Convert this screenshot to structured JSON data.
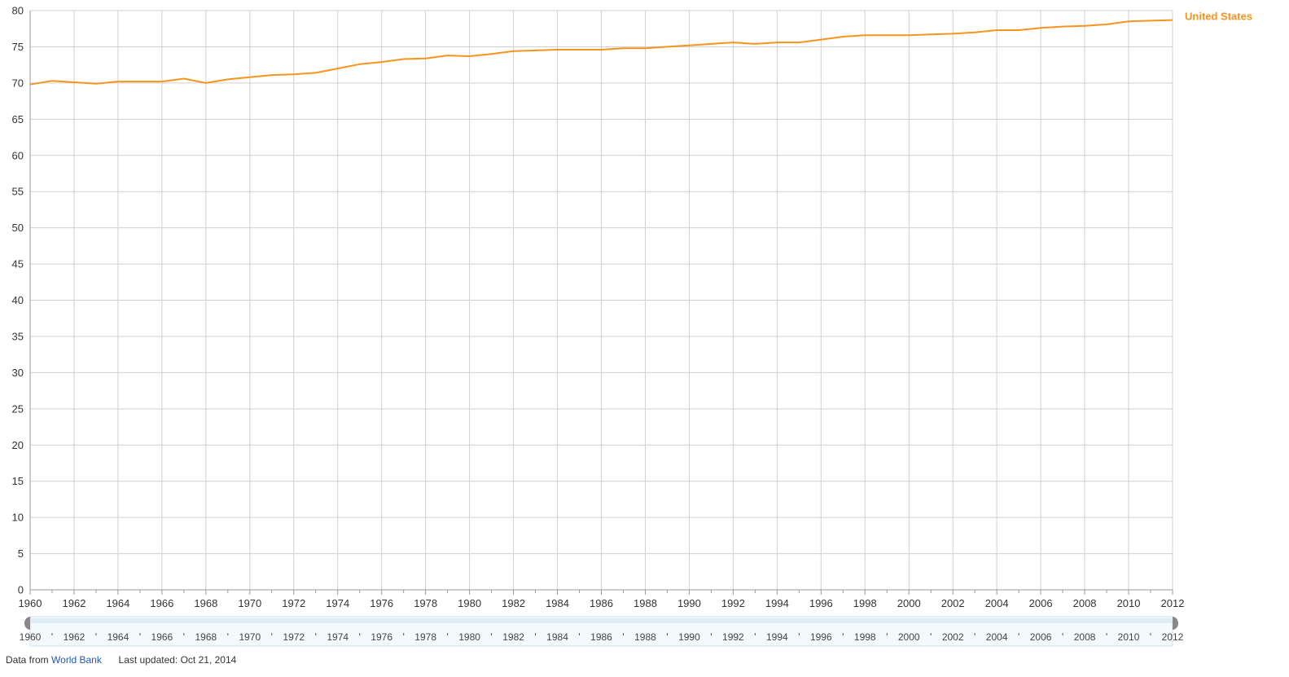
{
  "chart_data": {
    "type": "line",
    "title": "",
    "xlabel": "",
    "ylabel": "",
    "xlim": [
      1960,
      2012
    ],
    "ylim": [
      0,
      80
    ],
    "y_ticks": [
      0,
      5,
      10,
      15,
      20,
      25,
      30,
      35,
      40,
      45,
      50,
      55,
      60,
      65,
      70,
      75,
      80
    ],
    "x_tick_labels": [
      "1960",
      "1962",
      "1964",
      "1966",
      "1968",
      "1970",
      "1972",
      "1974",
      "1976",
      "1978",
      "1980",
      "1982",
      "1984",
      "1986",
      "1988",
      "1990",
      "1992",
      "1994",
      "1996",
      "1998",
      "2000",
      "2002",
      "2004",
      "2006",
      "2008",
      "2010",
      "2012"
    ],
    "grid": true,
    "series": [
      {
        "name": "United States",
        "color": "#f7941d",
        "x": [
          1960,
          1961,
          1962,
          1963,
          1964,
          1965,
          1966,
          1967,
          1968,
          1969,
          1970,
          1971,
          1972,
          1973,
          1974,
          1975,
          1976,
          1977,
          1978,
          1979,
          1980,
          1981,
          1982,
          1983,
          1984,
          1985,
          1986,
          1987,
          1988,
          1989,
          1990,
          1991,
          1992,
          1993,
          1994,
          1995,
          1996,
          1997,
          1998,
          1999,
          2000,
          2001,
          2002,
          2003,
          2004,
          2005,
          2006,
          2007,
          2008,
          2009,
          2010,
          2011,
          2012
        ],
        "values": [
          69.8,
          70.3,
          70.1,
          69.9,
          70.2,
          70.2,
          70.2,
          70.6,
          70.0,
          70.5,
          70.8,
          71.1,
          71.2,
          71.4,
          72.0,
          72.6,
          72.9,
          73.3,
          73.4,
          73.8,
          73.7,
          74.0,
          74.4,
          74.5,
          74.6,
          74.6,
          74.6,
          74.8,
          74.8,
          75.0,
          75.2,
          75.4,
          75.6,
          75.4,
          75.6,
          75.6,
          76.0,
          76.4,
          76.6,
          76.6,
          76.6,
          76.7,
          76.8,
          77.0,
          77.3,
          77.3,
          77.6,
          77.8,
          77.9,
          78.1,
          78.5,
          78.6,
          78.7
        ]
      }
    ]
  },
  "range_selector": {
    "start_label": "1960",
    "end_label": "2012"
  },
  "footer": {
    "prefix": "Data from",
    "source_link": "World Bank",
    "updated": "Last updated: Oct 21, 2014"
  },
  "colors": {
    "series": "#f7941d",
    "grid": "#d0d0d0",
    "axis": "#999999",
    "range_track": "#ddeef5",
    "handle": "#888888",
    "link": "#2255bb"
  }
}
